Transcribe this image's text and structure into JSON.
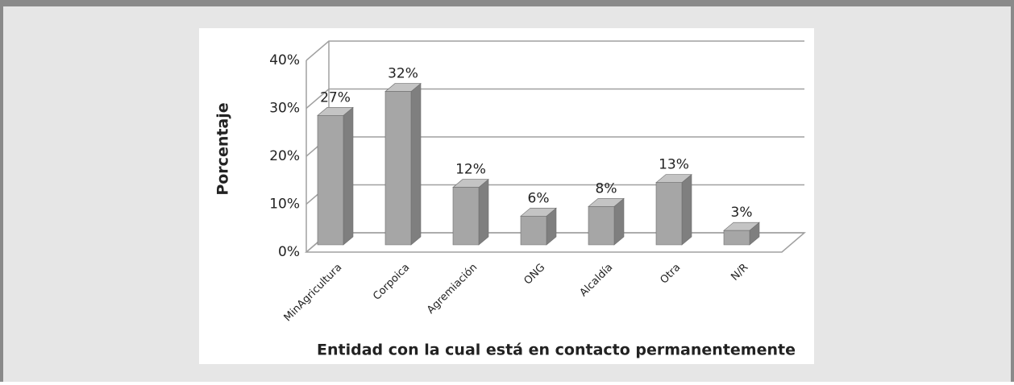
{
  "chart_data": {
    "type": "bar3d",
    "y_label": "Porcentaje",
    "x_label": "Entidad con la cual está en contacto permanentemente",
    "categories": [
      "MinAgricultura",
      "Corpoica",
      "Agremiación",
      "ONG",
      "Alcaldía",
      "Otra",
      "N/R"
    ],
    "values": [
      27,
      32,
      12,
      6,
      8,
      13,
      3
    ],
    "value_labels": [
      "27%",
      "32%",
      "12%",
      "6%",
      "8%",
      "13%",
      "3%"
    ],
    "color": "#a6a6a6",
    "ylim": [
      0,
      40
    ],
    "yticks": [
      {
        "value": 0,
        "label": "0%"
      },
      {
        "value": 10,
        "label": "10%"
      },
      {
        "value": 20,
        "label": "20%"
      },
      {
        "value": 30,
        "label": "30%"
      },
      {
        "value": 40,
        "label": "40%"
      }
    ],
    "grid": true
  }
}
